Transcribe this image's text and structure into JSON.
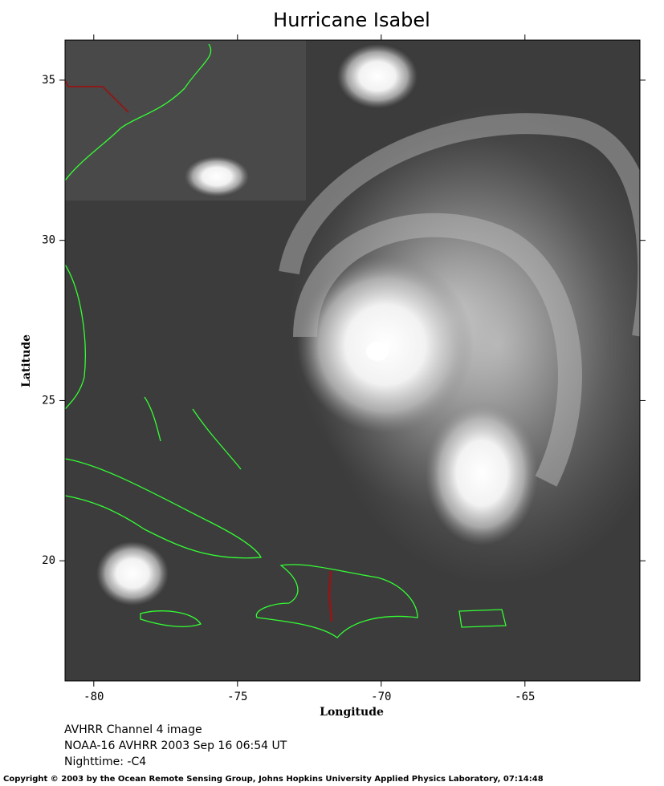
{
  "chart_data": {
    "type": "image-map",
    "title": "Hurricane Isabel",
    "x_label": "Longitude",
    "y_label": "Latitude",
    "xlim": [
      -81,
      -61
    ],
    "ylim": [
      16.25,
      36.25
    ],
    "xticks": [
      -80,
      -75,
      -70,
      -65
    ],
    "yticks": [
      20,
      25,
      30,
      35
    ]
  },
  "caption": [
    "AVHRR Channel 4 image",
    "NOAA-16 AVHRR 2003 Sep 16 06:54 UT",
    "Nighttime: -C4"
  ],
  "copyright": "Copyright © 2003 by the Ocean Remote Sensing Group, Johns Hopkins University Applied Physics Laboratory, 07:14:48"
}
